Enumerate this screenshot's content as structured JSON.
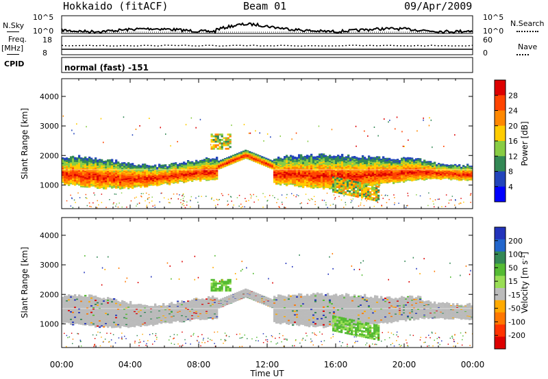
{
  "header": {
    "station": "Hokkaido (fitACF)",
    "beam": "Beam 01",
    "date": "09/Apr/2009"
  },
  "top_panels": {
    "nsky_label": "N.Sky",
    "nsky_ticks": [
      "10^5",
      "10^0"
    ],
    "nsearch_label": "N.Search",
    "nsearch_ticks": [
      "10^5",
      "10^0"
    ],
    "freq_label": "Freq.",
    "freq_unit": "[MHz]",
    "freq_ticks": [
      "18",
      "8"
    ],
    "nave_label": "Nave",
    "nave_ticks": [
      "60",
      "0"
    ],
    "cpid_label": "CPID",
    "cpid_value": "normal (fast) -151"
  },
  "chart_data": [
    {
      "type": "heatmap",
      "name": "power",
      "ylabel": "Slant Range [km]",
      "ylim": [
        200,
        4600
      ],
      "yticks": [
        "1000",
        "2000",
        "3000",
        "4000"
      ],
      "xlim": [
        0,
        24
      ],
      "colorbar": {
        "label": "Power [dB]",
        "ticks": [
          "28",
          "24",
          "20",
          "16",
          "12",
          "8",
          "4"
        ],
        "colors": [
          "#dd0000",
          "#ff4400",
          "#ff8800",
          "#ffcc00",
          "#88cc44",
          "#338855",
          "#2244bb",
          "#0000ff"
        ]
      },
      "bands": [
        {
          "x_start": 0,
          "x_end": 24,
          "y_low": 800,
          "y_high": 1900,
          "level": "mixed"
        },
        {
          "x_start": 8.7,
          "x_end": 9.8,
          "y_low": 2200,
          "y_high": 2700,
          "level": "medium"
        },
        {
          "x_start": 15.8,
          "x_end": 18.5,
          "y_low": 750,
          "y_high": 1250,
          "level": "medium"
        }
      ]
    },
    {
      "type": "heatmap",
      "name": "velocity",
      "ylabel": "Slant Range [km]",
      "ylim": [
        200,
        4600
      ],
      "yticks": [
        "1000",
        "2000",
        "3000",
        "4000"
      ],
      "xlim": [
        0,
        24
      ],
      "xlabel": "Time UT",
      "xticks": [
        "00:00",
        "04:00",
        "08:00",
        "12:00",
        "16:00",
        "20:00",
        "00:00"
      ],
      "colorbar": {
        "label": "Velocity [m s",
        "label_sup": "-1",
        "label_end": "]",
        "ticks": [
          "200",
          "100",
          "50",
          "15",
          "-15",
          "-50",
          "-100",
          "-200"
        ],
        "colors": [
          "#2233bb",
          "#2266cc",
          "#338855",
          "#55bb33",
          "#99dd55",
          "#bbbbbb",
          "#ffaa00",
          "#ff7700",
          "#ff3300",
          "#dd0000"
        ]
      },
      "bands": [
        {
          "x_start": 0,
          "x_end": 24,
          "y_low": 800,
          "y_high": 1900,
          "level": "ground-scatter"
        },
        {
          "x_start": 8.7,
          "x_end": 9.8,
          "y_low": 2100,
          "y_high": 2500,
          "level": "positive"
        },
        {
          "x_start": 15.8,
          "x_end": 18.5,
          "y_low": 750,
          "y_high": 1250,
          "level": "positive"
        }
      ]
    }
  ]
}
